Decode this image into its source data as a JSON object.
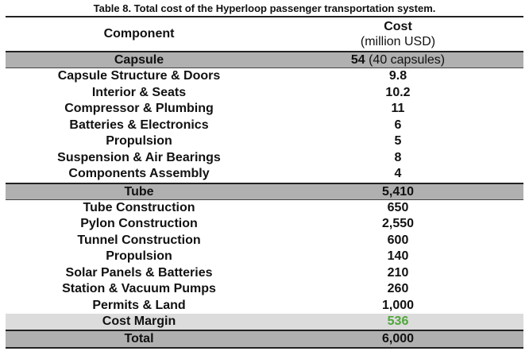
{
  "caption": "Table 8. Total cost of the Hyperloop passenger transportation system.",
  "header": {
    "component": "Component",
    "cost_line1": "Cost",
    "cost_line2": "(million USD)"
  },
  "capsule": {
    "label": "Capsule",
    "value_main": "54",
    "value_note": " (40 capsules)",
    "items": [
      {
        "label": "Capsule Structure & Doors",
        "value": "9.8"
      },
      {
        "label": "Interior & Seats",
        "value": "10.2"
      },
      {
        "label": "Compressor & Plumbing",
        "value": "11"
      },
      {
        "label": "Batteries & Electronics",
        "value": "6"
      },
      {
        "label": "Propulsion",
        "value": "5"
      },
      {
        "label": "Suspension & Air Bearings",
        "value": "8"
      },
      {
        "label": "Components Assembly",
        "value": "4"
      }
    ]
  },
  "tube": {
    "label": "Tube",
    "value": "5,410",
    "items": [
      {
        "label": "Tube Construction",
        "value": "650"
      },
      {
        "label": "Pylon Construction",
        "value": "2,550"
      },
      {
        "label": "Tunnel Construction",
        "value": "600"
      },
      {
        "label": "Propulsion",
        "value": "140"
      },
      {
        "label": "Solar Panels & Batteries",
        "value": "210"
      },
      {
        "label": "Station & Vacuum Pumps",
        "value": "260"
      },
      {
        "label": "Permits & Land",
        "value": "1,000"
      }
    ]
  },
  "margin": {
    "label": "Cost Margin",
    "value": "536"
  },
  "total": {
    "label": "Total",
    "value": "6,000"
  },
  "colors": {
    "group_fill": "#b0b0b0",
    "margin_fill": "#dcdcdc",
    "margin_value": "#4fa63a"
  }
}
